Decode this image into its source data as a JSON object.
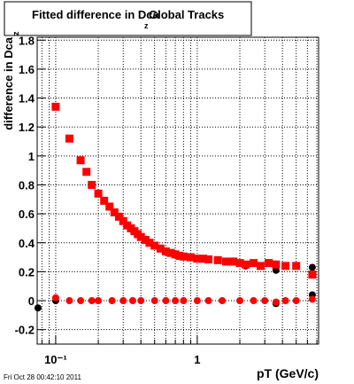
{
  "chart_data": {
    "type": "scatter",
    "title": "Fitted difference in Dca",
    "title_subscript": "z",
    "title_suffix": "Global Tracks",
    "y_label": "difference in Dca",
    "y_label_subscript": "z",
    "x_label": "pT (GeV/c)",
    "footer": "Fri Oct 28 00:42:10 2011",
    "x_log": true,
    "grid": true,
    "xlim": [
      0.074,
      7.2
    ],
    "ylim": [
      -0.3,
      1.82
    ],
    "xticks": [
      {
        "value": 0.1,
        "label": "10⁻¹"
      },
      1
    ],
    "x_minor_ticks": [
      0.08,
      0.09,
      0.2,
      0.3,
      0.4,
      0.5,
      0.6,
      0.7,
      0.8,
      0.9,
      2,
      3,
      4,
      5,
      6,
      7
    ],
    "yticks": [
      -0.2,
      0,
      0.2,
      0.4,
      0.6,
      0.8,
      1,
      1.2,
      1.4,
      1.6,
      1.8
    ],
    "series": [
      {
        "color": "#000000",
        "marker": "circle",
        "x": [
          0.075,
          0.1,
          2.2,
          3.6,
          6.5
        ],
        "values": [
          -0.05,
          0.0,
          0.24,
          0.21,
          0.23
        ]
      },
      {
        "color": "#000000",
        "marker": "circle",
        "x": [
          3.6,
          6.5
        ],
        "values": [
          -0.02,
          0.04
        ]
      },
      {
        "color": "#ff0000",
        "marker": "square",
        "x": [
          0.1,
          0.125,
          0.15,
          0.165,
          0.18,
          0.2,
          0.22,
          0.24,
          0.26,
          0.28,
          0.3,
          0.32,
          0.34,
          0.36,
          0.38,
          0.4,
          0.43,
          0.46,
          0.5,
          0.55,
          0.6,
          0.65,
          0.7,
          0.75,
          0.8,
          0.9,
          1.0,
          1.1,
          1.2,
          1.4,
          1.6,
          1.8,
          2.0,
          2.2,
          2.5,
          2.8,
          3.2,
          3.6,
          4.2,
          5.0,
          6.5
        ],
        "values": [
          1.34,
          1.12,
          0.97,
          0.89,
          0.8,
          0.74,
          0.69,
          0.65,
          0.61,
          0.58,
          0.55,
          0.52,
          0.5,
          0.48,
          0.46,
          0.44,
          0.42,
          0.4,
          0.38,
          0.36,
          0.34,
          0.33,
          0.32,
          0.31,
          0.305,
          0.3,
          0.29,
          0.29,
          0.285,
          0.28,
          0.27,
          0.27,
          0.26,
          0.25,
          0.26,
          0.24,
          0.26,
          0.25,
          0.24,
          0.24,
          0.18
        ]
      },
      {
        "color": "#ff0000",
        "marker": "circle",
        "x": [
          0.1,
          0.125,
          0.15,
          0.18,
          0.2,
          0.25,
          0.3,
          0.35,
          0.4,
          0.5,
          0.6,
          0.7,
          0.8,
          1.0,
          1.2,
          1.5,
          2.0,
          2.5,
          3.0,
          3.6,
          4.2,
          5.0,
          6.5
        ],
        "values": [
          0.02,
          0.0,
          0.0,
          0.0,
          0.0,
          0.0,
          0.0,
          0.0,
          0.0,
          0.0,
          0.0,
          0.0,
          0.0,
          0.0,
          0.0,
          0.0,
          0.0,
          0.0,
          0.0,
          -0.01,
          0.0,
          0.0,
          0.01
        ]
      }
    ]
  }
}
